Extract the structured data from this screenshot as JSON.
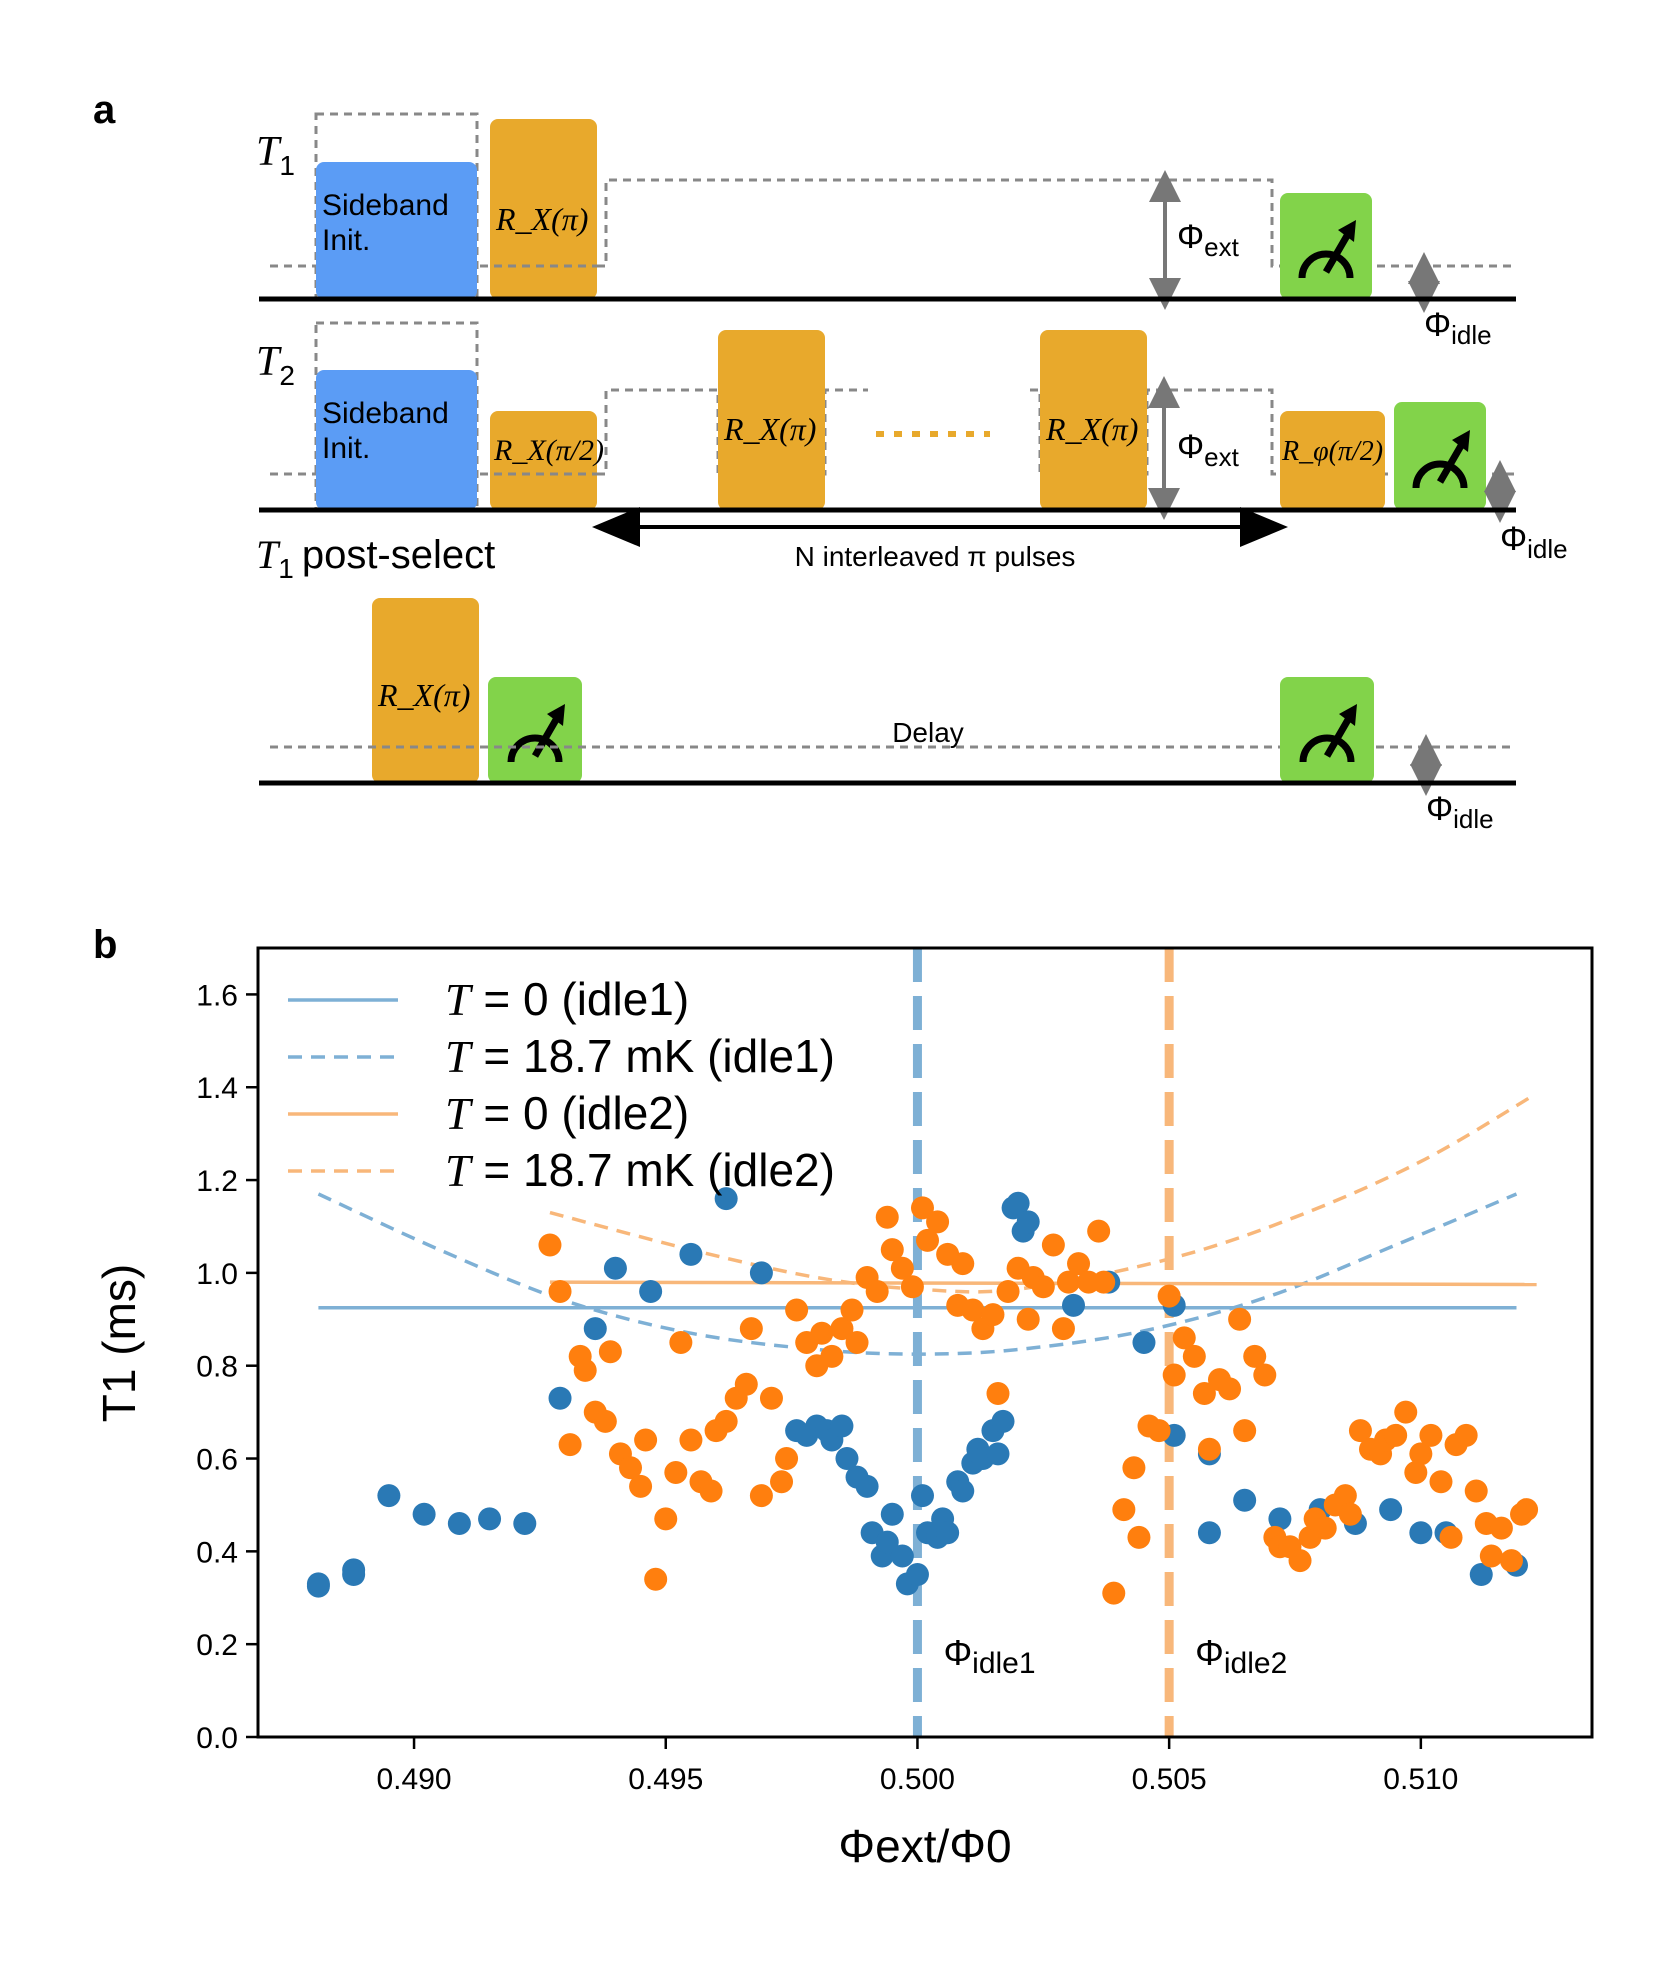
{
  "panel_a": {
    "label": "a",
    "row1": {
      "title_sym": "T",
      "title_sub": "1",
      "box1": [
        "Sideband",
        "Init."
      ],
      "pulse1": "R_X(π)",
      "phi_ext": "ext",
      "phi_idle": "idle"
    },
    "row2": {
      "title_sym": "T",
      "title_sub": "2",
      "box1": [
        "Sideband",
        "Init."
      ],
      "pulse1": "R_X(π/2)",
      "pulse_mid_a": "R_X(π)",
      "pulse_mid_b": "R_X(π)",
      "pulse_last": "R_φ(π/2)",
      "phi_ext": "ext",
      "phi_idle": "idle",
      "arrow_text": "N interleaved π pulses"
    },
    "row3": {
      "title_sym": "T",
      "title_sub": "1",
      "title_rest": "post-select",
      "pulse1": "R_X(π)",
      "delay": "Delay",
      "phi_idle": "idle"
    },
    "colors": {
      "sideband": "#5b9cf5",
      "pulse": "#e8a92c",
      "measure": "#82d34a",
      "dash": "#888888",
      "arrow": "#777777"
    }
  },
  "chart_data": {
    "type": "scatter",
    "panel_label": "b",
    "xlabel": "Φext/Φ0",
    "ylabel": "T1 (ms)",
    "xlim": [
      0.4869,
      0.5134
    ],
    "ylim": [
      0.0,
      1.7
    ],
    "xticks": [
      0.49,
      0.495,
      0.5,
      0.505,
      0.51
    ],
    "xtick_labels": [
      "0.490",
      "0.495",
      "0.500",
      "0.505",
      "0.510"
    ],
    "yticks": [
      0.0,
      0.2,
      0.4,
      0.6,
      0.8,
      1.0,
      1.2,
      1.4,
      1.6
    ],
    "ytick_labels": [
      "0.0",
      "0.2",
      "0.4",
      "0.6",
      "0.8",
      "1.0",
      "1.2",
      "1.4",
      "1.6"
    ],
    "legend": [
      "T = 0 (idle1)",
      "T = 18.7 mK (idle1)",
      "T = 0 (idle2)",
      "T = 18.7 mK (idle2)"
    ],
    "legend_position": "top-left",
    "vlines": [
      {
        "x": 0.5,
        "label": "idle1",
        "color": "#7eb0d5"
      },
      {
        "x": 0.505,
        "label": "idle2",
        "color": "#f8b77a"
      }
    ],
    "curves": [
      {
        "name": "T = 0 (idle1)",
        "style": "solid",
        "color": "#7eb0d5",
        "x": [
          0.4881,
          0.5119
        ],
        "y": [
          0.925,
          0.925
        ]
      },
      {
        "name": "T = 18.7 mK (idle1)",
        "style": "dashed",
        "color": "#7eb0d5",
        "x": [
          0.4881,
          0.4905,
          0.493,
          0.4955,
          0.498,
          0.5,
          0.502,
          0.5045,
          0.507,
          0.5095,
          0.5119
        ],
        "y": [
          1.17,
          1.05,
          0.94,
          0.87,
          0.835,
          0.825,
          0.835,
          0.875,
          0.95,
          1.06,
          1.17
        ]
      },
      {
        "name": "T = 0 (idle2)",
        "style": "solid",
        "color": "#f8b77a",
        "x": [
          0.4927,
          0.5123
        ],
        "y": [
          0.98,
          0.975
        ]
      },
      {
        "name": "T = 18.7 mK (idle2)",
        "style": "dashed",
        "color": "#f8b77a",
        "x": [
          0.4927,
          0.4955,
          0.498,
          0.5,
          0.502,
          0.505,
          0.5075,
          0.51,
          0.5122
        ],
        "y": [
          1.13,
          1.05,
          0.99,
          0.965,
          0.965,
          1.03,
          1.12,
          1.24,
          1.38
        ]
      }
    ],
    "series": [
      {
        "name": "idle1 data",
        "color": "#2a79b5",
        "x": [
          0.4881,
          0.4881,
          0.4888,
          0.4888,
          0.4895,
          0.4902,
          0.4909,
          0.4915,
          0.4922,
          0.4929,
          0.4936,
          0.494,
          0.4947,
          0.4955,
          0.4962,
          0.4969,
          0.4976,
          0.4978,
          0.498,
          0.4982,
          0.4983,
          0.4985,
          0.4986,
          0.4988,
          0.499,
          0.4991,
          0.4993,
          0.4994,
          0.4995,
          0.4997,
          0.4998,
          0.5,
          0.5001,
          0.5002,
          0.5004,
          0.5005,
          0.5006,
          0.5008,
          0.5009,
          0.5011,
          0.5012,
          0.5013,
          0.5015,
          0.5016,
          0.5017,
          0.5019,
          0.502,
          0.5021,
          0.5022,
          0.5031,
          0.5038,
          0.5045,
          0.5051,
          0.5051,
          0.5058,
          0.5058,
          0.5065,
          0.5072,
          0.508,
          0.5087,
          0.5094,
          0.51,
          0.5105,
          0.5112,
          0.5119
        ],
        "y": [
          0.33,
          0.325,
          0.36,
          0.35,
          0.52,
          0.48,
          0.46,
          0.47,
          0.46,
          0.73,
          0.88,
          1.01,
          0.96,
          1.04,
          1.16,
          1.0,
          0.66,
          0.65,
          0.67,
          0.66,
          0.64,
          0.67,
          0.6,
          0.56,
          0.54,
          0.44,
          0.39,
          0.42,
          0.48,
          0.39,
          0.33,
          0.35,
          0.52,
          0.44,
          0.43,
          0.47,
          0.44,
          0.55,
          0.53,
          0.59,
          0.62,
          0.6,
          0.66,
          0.61,
          0.68,
          1.14,
          1.15,
          1.09,
          1.11,
          0.93,
          0.98,
          0.85,
          0.93,
          0.65,
          0.61,
          0.44,
          0.51,
          0.47,
          0.49,
          0.46,
          0.49,
          0.44,
          0.44,
          0.35,
          0.37
        ]
      },
      {
        "name": "idle2 data",
        "color": "#ff7f0e",
        "x": [
          0.4927,
          0.4929,
          0.4931,
          0.4933,
          0.4934,
          0.4936,
          0.4938,
          0.4939,
          0.4941,
          0.4943,
          0.4945,
          0.4946,
          0.4948,
          0.495,
          0.4952,
          0.4953,
          0.4955,
          0.4957,
          0.4959,
          0.496,
          0.4962,
          0.4964,
          0.4966,
          0.4967,
          0.4969,
          0.4971,
          0.4973,
          0.4974,
          0.4976,
          0.4978,
          0.498,
          0.4981,
          0.4983,
          0.4985,
          0.4987,
          0.4988,
          0.499,
          0.4992,
          0.4994,
          0.4995,
          0.4997,
          0.4999,
          0.5001,
          0.5002,
          0.5004,
          0.5006,
          0.5008,
          0.5009,
          0.5011,
          0.5013,
          0.5015,
          0.5016,
          0.5018,
          0.502,
          0.5022,
          0.5023,
          0.5025,
          0.5027,
          0.5029,
          0.503,
          0.5032,
          0.5034,
          0.5036,
          0.5037,
          0.5039,
          0.5041,
          0.5043,
          0.5044,
          0.5046,
          0.5048,
          0.505,
          0.5051,
          0.5053,
          0.5055,
          0.5057,
          0.5058,
          0.506,
          0.5062,
          0.5064,
          0.5065,
          0.5067,
          0.5069,
          0.5071,
          0.5072,
          0.5074,
          0.5076,
          0.5078,
          0.5079,
          0.5081,
          0.5083,
          0.5085,
          0.5086,
          0.5088,
          0.509,
          0.5092,
          0.5093,
          0.5095,
          0.5097,
          0.5099,
          0.51,
          0.5102,
          0.5104,
          0.5106,
          0.5107,
          0.5109,
          0.5111,
          0.5113,
          0.5114,
          0.5116,
          0.5118,
          0.512,
          0.5121
        ],
        "y": [
          1.06,
          0.96,
          0.63,
          0.82,
          0.79,
          0.7,
          0.68,
          0.83,
          0.61,
          0.58,
          0.54,
          0.64,
          0.34,
          0.47,
          0.57,
          0.85,
          0.64,
          0.55,
          0.53,
          0.66,
          0.68,
          0.73,
          0.76,
          0.88,
          0.52,
          0.73,
          0.55,
          0.6,
          0.92,
          0.85,
          0.8,
          0.87,
          0.82,
          0.88,
          0.92,
          0.85,
          0.99,
          0.96,
          1.12,
          1.05,
          1.01,
          0.97,
          1.14,
          1.07,
          1.11,
          1.04,
          0.93,
          1.02,
          0.92,
          0.88,
          0.91,
          0.74,
          0.96,
          1.01,
          0.9,
          0.99,
          0.97,
          1.06,
          0.88,
          0.98,
          1.02,
          0.98,
          1.09,
          0.98,
          0.31,
          0.49,
          0.58,
          0.43,
          0.67,
          0.66,
          0.95,
          0.78,
          0.86,
          0.82,
          0.74,
          0.62,
          0.77,
          0.75,
          0.9,
          0.66,
          0.82,
          0.78,
          0.43,
          0.41,
          0.41,
          0.38,
          0.43,
          0.47,
          0.45,
          0.5,
          0.52,
          0.48,
          0.66,
          0.62,
          0.61,
          0.64,
          0.65,
          0.7,
          0.57,
          0.61,
          0.65,
          0.55,
          0.43,
          0.63,
          0.65,
          0.53,
          0.46,
          0.39,
          0.45,
          0.38,
          0.48,
          0.49
        ]
      }
    ]
  }
}
